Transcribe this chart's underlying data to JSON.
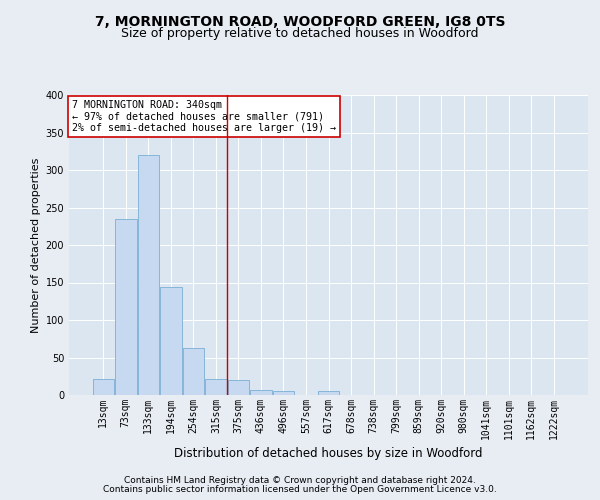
{
  "title1": "7, MORNINGTON ROAD, WOODFORD GREEN, IG8 0TS",
  "title2": "Size of property relative to detached houses in Woodford",
  "xlabel": "Distribution of detached houses by size in Woodford",
  "ylabel": "Number of detached properties",
  "footer1": "Contains HM Land Registry data © Crown copyright and database right 2024.",
  "footer2": "Contains public sector information licensed under the Open Government Licence v3.0.",
  "bin_labels": [
    "13sqm",
    "73sqm",
    "133sqm",
    "194sqm",
    "254sqm",
    "315sqm",
    "375sqm",
    "436sqm",
    "496sqm",
    "557sqm",
    "617sqm",
    "678sqm",
    "738sqm",
    "799sqm",
    "859sqm",
    "920sqm",
    "980sqm",
    "1041sqm",
    "1101sqm",
    "1162sqm",
    "1222sqm"
  ],
  "bar_values": [
    22,
    235,
    320,
    144,
    63,
    22,
    20,
    7,
    5,
    0,
    5,
    0,
    0,
    0,
    0,
    0,
    0,
    0,
    0,
    0,
    0
  ],
  "bar_color": "#c6d9f0",
  "bar_edge_color": "#7aafd4",
  "vline_x": 5.5,
  "vline_color": "#cc0000",
  "annotation_line1": "7 MORNINGTON ROAD: 340sqm",
  "annotation_line2": "← 97% of detached houses are smaller (791)",
  "annotation_line3": "2% of semi-detached houses are larger (19) →",
  "annotation_box_color": "#ffffff",
  "annotation_box_edge": "#cc0000",
  "ylim": [
    0,
    400
  ],
  "yticks": [
    0,
    50,
    100,
    150,
    200,
    250,
    300,
    350,
    400
  ],
  "bg_color": "#e8edf4",
  "plot_bg": "#dce6f0",
  "title1_fontsize": 10,
  "title2_fontsize": 9,
  "ylabel_fontsize": 8,
  "xlabel_fontsize": 8.5,
  "tick_fontsize": 7,
  "footer_fontsize": 6.5
}
